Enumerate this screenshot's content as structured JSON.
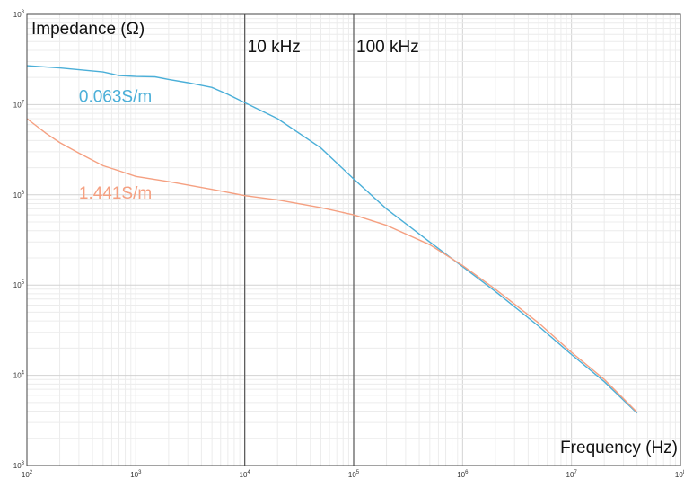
{
  "chart_data": {
    "type": "line",
    "title": "",
    "xlabel": "Frequency (Hz)",
    "ylabel": "Impedance (Ω)",
    "x_scale": "log",
    "y_scale": "log",
    "xlim": [
      100,
      100000000
    ],
    "ylim": [
      1000,
      100000000
    ],
    "grid": true,
    "x_ticks": [
      {
        "value": 100,
        "base": "10",
        "exp": "2"
      },
      {
        "value": 1000,
        "base": "10",
        "exp": "3"
      },
      {
        "value": 10000,
        "base": "10",
        "exp": "4"
      },
      {
        "value": 100000,
        "base": "10",
        "exp": "5"
      },
      {
        "value": 1000000,
        "base": "10",
        "exp": "6"
      },
      {
        "value": 10000000,
        "base": "10",
        "exp": "7"
      },
      {
        "value": 100000000,
        "base": "10",
        "exp": "8"
      }
    ],
    "y_ticks": [
      {
        "value": 1000,
        "base": "10",
        "exp": "3"
      },
      {
        "value": 10000,
        "base": "10",
        "exp": "4"
      },
      {
        "value": 100000,
        "base": "10",
        "exp": "5"
      },
      {
        "value": 1000000,
        "base": "10",
        "exp": "6"
      },
      {
        "value": 10000000,
        "base": "10",
        "exp": "7"
      },
      {
        "value": 100000000,
        "base": "10",
        "exp": "8"
      }
    ],
    "vlines": [
      {
        "x": 10000,
        "label": "10 kHz"
      },
      {
        "x": 100000,
        "label": "100 kHz"
      }
    ],
    "series": [
      {
        "name": "0.063S/m",
        "color": "#4BAFD8",
        "label_at": {
          "x": 300,
          "y": 10700000
        },
        "points": [
          [
            100,
            27000000
          ],
          [
            200,
            25500000
          ],
          [
            500,
            23000000
          ],
          [
            700,
            21000000
          ],
          [
            1000,
            20500000
          ],
          [
            1500,
            20300000
          ],
          [
            2000,
            19000000
          ],
          [
            3000,
            17500000
          ],
          [
            5000,
            15500000
          ],
          [
            7000,
            13000000
          ],
          [
            10000,
            10500000
          ],
          [
            20000,
            7000000
          ],
          [
            50000,
            3300000
          ],
          [
            100000,
            1500000
          ],
          [
            200000,
            700000
          ],
          [
            500000,
            300000
          ],
          [
            1000000,
            160000
          ],
          [
            2000000,
            85000
          ],
          [
            5000000,
            35000
          ],
          [
            10000000,
            17000
          ],
          [
            20000000,
            8500
          ],
          [
            40000000,
            3800
          ]
        ]
      },
      {
        "name": "1.441S/m",
        "color": "#F5A081",
        "label_at": {
          "x": 300,
          "y": 910000
        },
        "points": [
          [
            100,
            7000000
          ],
          [
            150,
            4800000
          ],
          [
            200,
            3800000
          ],
          [
            300,
            2900000
          ],
          [
            500,
            2100000
          ],
          [
            700,
            1850000
          ],
          [
            1000,
            1600000
          ],
          [
            2000,
            1400000
          ],
          [
            5000,
            1150000
          ],
          [
            10000,
            980000
          ],
          [
            20000,
            880000
          ],
          [
            50000,
            720000
          ],
          [
            100000,
            600000
          ],
          [
            200000,
            460000
          ],
          [
            500000,
            280000
          ],
          [
            1000000,
            165000
          ],
          [
            2000000,
            90000
          ],
          [
            5000000,
            38000
          ],
          [
            10000000,
            18000
          ],
          [
            20000000,
            9000
          ],
          [
            40000000,
            3900
          ]
        ]
      }
    ]
  }
}
